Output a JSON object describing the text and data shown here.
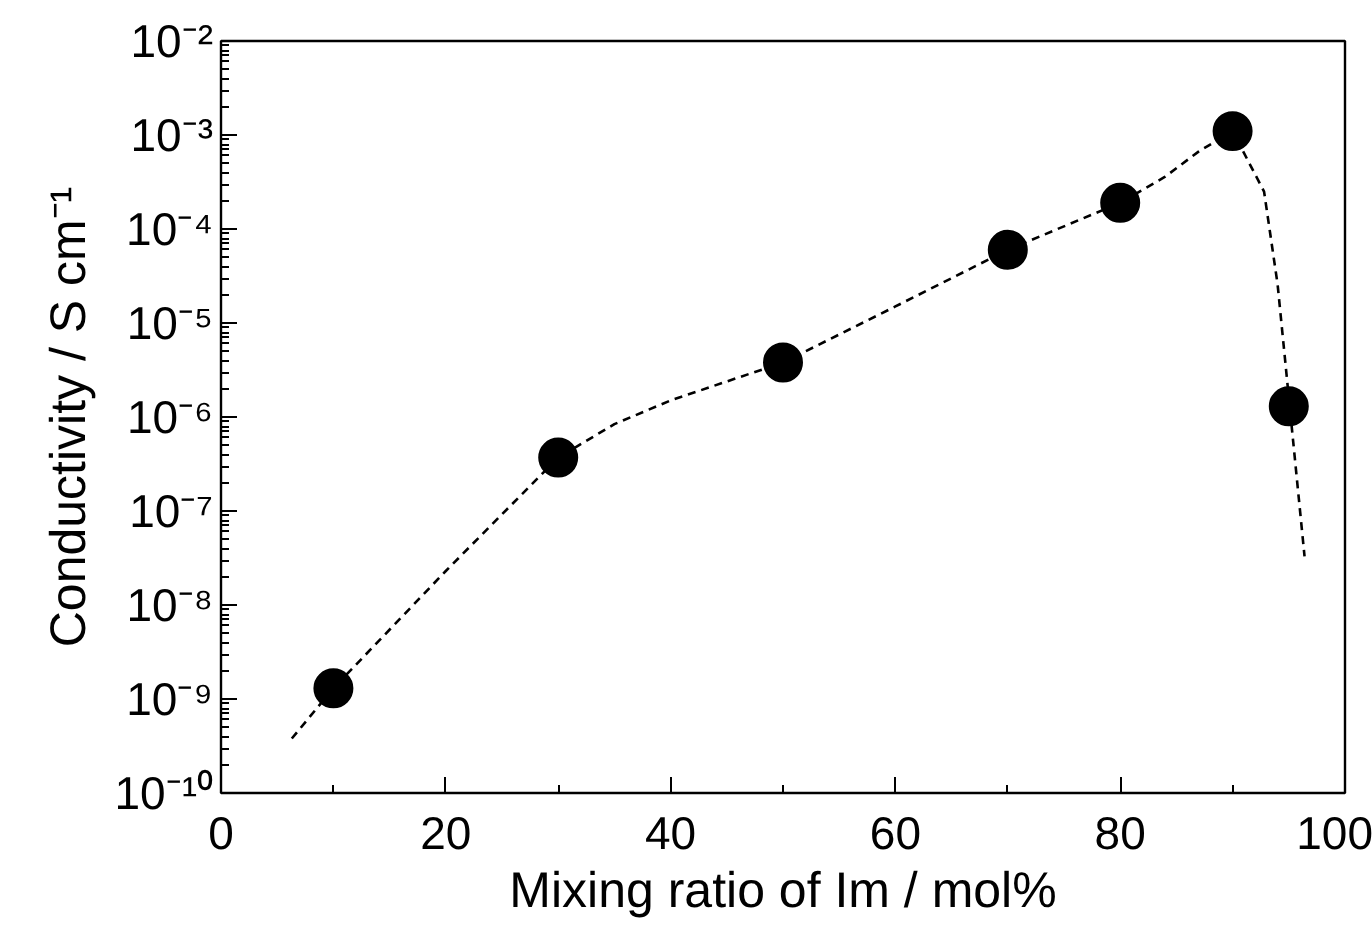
{
  "chart_data": {
    "type": "scatter",
    "xlabel": "Mixing ratio of Im / mol%",
    "ylabel": "Conductivity / S cm⁻¹",
    "log": "y",
    "marker": "circle",
    "grid": false,
    "xlim": [
      0,
      100
    ],
    "xticks": [
      0,
      20,
      40,
      60,
      80,
      100
    ],
    "ylim": [
      1e-10,
      0.01
    ],
    "yticks": [
      {
        "value": 1e-10,
        "label": "10⁻¹⁰"
      },
      {
        "value": 1e-09,
        "label": "10⁻⁹"
      },
      {
        "value": 1e-08,
        "label": "10⁻⁸"
      },
      {
        "value": 1e-07,
        "label": "10⁻⁷"
      },
      {
        "value": 1e-06,
        "label": "10⁻⁶"
      },
      {
        "value": 1e-05,
        "label": "10⁻⁵"
      },
      {
        "value": 0.0001,
        "label": "10⁻⁴"
      },
      {
        "value": 0.001,
        "label": "10⁻³"
      },
      {
        "value": 0.01,
        "label": "10⁻²"
      }
    ],
    "series": [
      {
        "color": "#000000",
        "x": [
          10,
          30,
          50,
          70,
          80,
          90,
          95
        ],
        "values": [
          1.3e-09,
          3.7e-07,
          3.8e-06,
          6e-05,
          0.00019,
          0.0011,
          1.3e-06
        ]
      },
      {
        "type": "line",
        "color": "#000000",
        "line_style": "dashed",
        "marker": "none",
        "x": [
          6.3,
          10,
          20,
          30,
          35,
          40,
          50,
          60,
          70,
          80,
          84,
          87,
          90,
          92.8,
          94,
          95.2,
          96.4
        ],
        "values": [
          3.8e-10,
          1.3e-09,
          2.3e-08,
          3.7e-07,
          8.4e-07,
          1.5e-06,
          3.8e-06,
          1.5e-05,
          6e-05,
          0.00019,
          0.00036,
          0.00067,
          0.0011,
          0.00025,
          2.6e-05,
          9.3e-07,
          3.3e-08
        ]
      }
    ]
  }
}
